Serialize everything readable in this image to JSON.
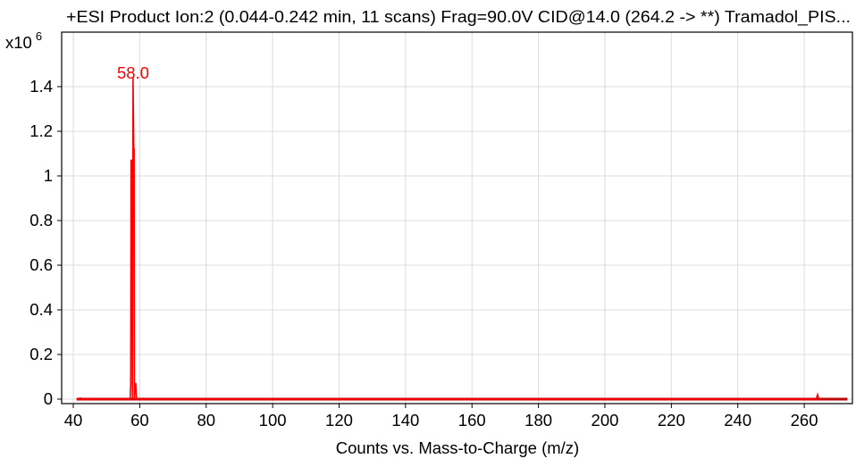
{
  "chart_data": {
    "type": "line",
    "title": "+ESI Product Ion:2 (0.044-0.242 min, 11 scans) Frag=90.0V CID@14.0 (264.2 -> **) Tramadol_PIS...",
    "xlabel": "Counts vs. Mass-to-Charge (m/z)",
    "ylabel": "",
    "y_multiplier": "x10",
    "y_exponent": "6",
    "xlim": [
      36.5,
      274.5
    ],
    "ylim": [
      0,
      1.55
    ],
    "xticks": [
      40,
      60,
      80,
      100,
      120,
      140,
      160,
      180,
      200,
      220,
      240,
      260
    ],
    "xtick_labels": [
      "40",
      "60",
      "80",
      "100",
      "120",
      "140",
      "160",
      "180",
      "200",
      "220",
      "240",
      "260"
    ],
    "yticks": [
      0,
      0.2,
      0.4,
      0.6,
      0.8,
      1.0,
      1.2,
      1.4
    ],
    "ytick_labels": [
      "0",
      "0.2",
      "0.4",
      "0.6",
      "0.8",
      "1",
      "1.2",
      "1.4"
    ],
    "grid": true,
    "color": "#ff0000",
    "series": [
      {
        "x": [
          41.0,
          41.8,
          42.0,
          42.2,
          42.4,
          43.0,
          57.1,
          57.3,
          57.4,
          57.6,
          57.8,
          58.0,
          58.2,
          58.3,
          58.4,
          58.6,
          58.8,
          59.0,
          59.2,
          263.6,
          263.8,
          264.0,
          264.2,
          264.4,
          264.8
        ],
        "values": [
          0.0,
          0.0,
          0.005,
          0.004,
          0.0,
          0.0,
          0.0,
          0.07,
          1.07,
          1.07,
          0.0,
          1.44,
          1.12,
          1.12,
          0.0,
          0.07,
          0.07,
          0.0,
          0.0,
          0.0,
          0.01,
          0.02,
          0.01,
          0.0,
          0.0
        ]
      }
    ],
    "baseline": {
      "x": [
        41.0,
        273.0
      ],
      "values": [
        0.0,
        0.0
      ]
    },
    "annotations": [
      {
        "text": "58.0",
        "x": 58.0,
        "y": 1.44
      }
    ]
  }
}
